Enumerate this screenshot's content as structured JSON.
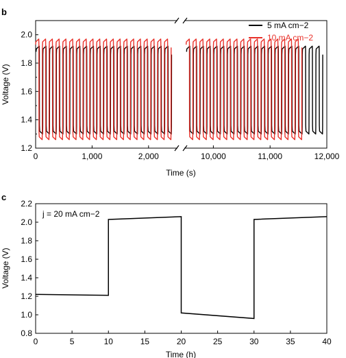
{
  "chart_data": [
    {
      "panel": "b",
      "type": "line",
      "xlabel": "Time (s)",
      "ylabel": "Voltage (V)",
      "ylim": [
        1.2,
        2.1
      ],
      "yticks": [
        "1.2",
        "1.4",
        "1.6",
        "1.8",
        "2.0"
      ],
      "broken_x_axis": true,
      "x_segments": [
        {
          "xlim": [
            0,
            2500
          ],
          "ticks": [
            0,
            1000,
            2000
          ],
          "tick_labels": [
            "0",
            "1,000",
            "2,000"
          ]
        },
        {
          "xlim": [
            9500,
            12000
          ],
          "ticks": [
            10000,
            11000,
            12000
          ],
          "tick_labels": [
            "10,000",
            "11,000",
            "12,000"
          ]
        }
      ],
      "series": [
        {
          "name": "5 mA cm−2",
          "color": "#000000",
          "charge_voltage": 1.92,
          "discharge_voltage": 1.3,
          "pulse_period_s": 120,
          "x_end": 12000
        },
        {
          "name": "10 mA cm−2",
          "color": "#e8312a",
          "charge_voltage": 1.97,
          "discharge_voltage": 1.26,
          "pulse_period_s": 120,
          "x_end": 11600
        }
      ],
      "legend_position": "top-right"
    },
    {
      "panel": "c",
      "type": "line",
      "annotation": "j = 20 mA cm−2",
      "xlabel": "Time (h)",
      "ylabel": "Voltage (V)",
      "xlim": [
        0,
        40
      ],
      "ylim": [
        0.8,
        2.2
      ],
      "xticks": [
        0,
        5,
        10,
        15,
        20,
        25,
        30,
        35,
        40
      ],
      "yticks": [
        "0.8",
        "1.0",
        "1.2",
        "1.4",
        "1.6",
        "1.8",
        "2.0",
        "2.2"
      ],
      "series": [
        {
          "color": "#000000",
          "x": [
            0,
            10,
            10,
            20,
            20,
            30,
            30,
            40
          ],
          "y": [
            1.22,
            1.21,
            2.03,
            2.06,
            1.02,
            0.96,
            2.03,
            2.06
          ]
        }
      ]
    }
  ]
}
